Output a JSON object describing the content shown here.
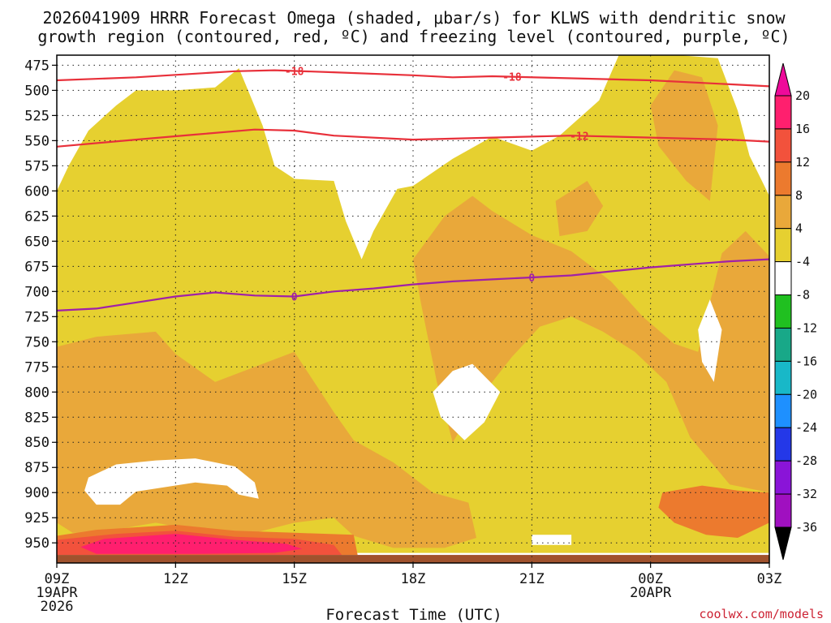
{
  "chart_data": {
    "type": "heatmap",
    "title_line1": "2026041909 HRRR Forecast Omega (shaded, μbar/s) for KLWS with dendritic snow",
    "title_line2": "growth region (contoured, red, ºC) and freezing level (contoured, purple, ºC)",
    "xlabel": "Forecast Time (UTC)",
    "credit": "coolwx.com/models",
    "x_hours": [
      0,
      18
    ],
    "x_ticks": [
      {
        "hour": 0,
        "label": "09Z",
        "sub1": "19APR",
        "sub2": "2026"
      },
      {
        "hour": 3,
        "label": "12Z",
        "sub1": "",
        "sub2": ""
      },
      {
        "hour": 6,
        "label": "15Z",
        "sub1": "",
        "sub2": ""
      },
      {
        "hour": 9,
        "label": "18Z",
        "sub1": "",
        "sub2": ""
      },
      {
        "hour": 12,
        "label": "21Z",
        "sub1": "",
        "sub2": ""
      },
      {
        "hour": 15,
        "label": "00Z",
        "sub1": "20APR",
        "sub2": ""
      },
      {
        "hour": 18,
        "label": "03Z",
        "sub1": "",
        "sub2": ""
      }
    ],
    "y_pressure_range": [
      465,
      970
    ],
    "y_ticks": [
      475,
      500,
      525,
      550,
      575,
      600,
      625,
      650,
      675,
      700,
      725,
      750,
      775,
      800,
      825,
      850,
      875,
      900,
      925,
      950
    ],
    "colorbar": {
      "labels": [
        "20",
        "16",
        "12",
        "8",
        "4",
        "-4",
        "-8",
        "-12",
        "-16",
        "-20",
        "-24",
        "-28",
        "-32",
        "-36"
      ],
      "colors": [
        "#ff1f6e",
        "#f2523c",
        "#ec7a2e",
        "#e9a83a",
        "#e6d030",
        "#ffffff",
        "#20c020",
        "#18a888",
        "#18b8c8",
        "#1e90ff",
        "#2438e8",
        "#8a14d8",
        "#a010c0",
        "#a8a8a8"
      ],
      "top_arrow_color": "#ee0a9a",
      "bottom_arrow_color": "#000000"
    },
    "contours": [
      {
        "name": "dgz-top",
        "label": "-18",
        "color": "#e8303a",
        "points": [
          [
            0,
            490
          ],
          [
            2,
            487
          ],
          [
            4.5,
            481
          ],
          [
            5.5,
            480
          ],
          [
            7,
            482
          ],
          [
            9,
            485
          ],
          [
            10,
            487
          ],
          [
            11,
            486
          ],
          [
            13,
            488
          ],
          [
            15,
            490
          ],
          [
            17,
            494
          ],
          [
            18,
            496
          ]
        ],
        "label_hours": [
          6,
          11.5
        ]
      },
      {
        "name": "dgz-bottom",
        "label": "-12",
        "color": "#e8303a",
        "points": [
          [
            0,
            556
          ],
          [
            2,
            549
          ],
          [
            3.5,
            544
          ],
          [
            5,
            539
          ],
          [
            6,
            540
          ],
          [
            7,
            545
          ],
          [
            9,
            549
          ],
          [
            11,
            547
          ],
          [
            13,
            545
          ],
          [
            15,
            547
          ],
          [
            17,
            549
          ],
          [
            18,
            551
          ]
        ],
        "label_hours": [
          13.2
        ]
      },
      {
        "name": "freezing-level",
        "label": "0",
        "color": "#a020a8",
        "points": [
          [
            0,
            719
          ],
          [
            1,
            717
          ],
          [
            2,
            711
          ],
          [
            3,
            705
          ],
          [
            4,
            701
          ],
          [
            5,
            704
          ],
          [
            6,
            705
          ],
          [
            7,
            700
          ],
          [
            8,
            697
          ],
          [
            9,
            693
          ],
          [
            10,
            690
          ],
          [
            11,
            688
          ],
          [
            12,
            686
          ],
          [
            13,
            684
          ],
          [
            14,
            680
          ],
          [
            15,
            676
          ],
          [
            16,
            673
          ],
          [
            17,
            670
          ],
          [
            18,
            668
          ]
        ],
        "label_hours": [
          6,
          12
        ]
      }
    ],
    "shaded_regions": [
      {
        "name": "omega-4-8",
        "color": "#e6d030",
        "points": [
          [
            0,
            600
          ],
          [
            0.3,
            575
          ],
          [
            0.8,
            540
          ],
          [
            1.5,
            515
          ],
          [
            2,
            500
          ],
          [
            3,
            500
          ],
          [
            4,
            497
          ],
          [
            4.6,
            478
          ],
          [
            5.2,
            535
          ],
          [
            5.5,
            575
          ],
          [
            6,
            588
          ],
          [
            7,
            590
          ],
          [
            7.3,
            630
          ],
          [
            7.7,
            668
          ],
          [
            8,
            640
          ],
          [
            8.6,
            598
          ],
          [
            9,
            595
          ],
          [
            10,
            568
          ],
          [
            11,
            546
          ],
          [
            12,
            560
          ],
          [
            12.7,
            545
          ],
          [
            13.7,
            510
          ],
          [
            14.2,
            465
          ],
          [
            15.7,
            465
          ],
          [
            16.7,
            468
          ],
          [
            17.2,
            520
          ],
          [
            17.5,
            565
          ],
          [
            18,
            605
          ],
          [
            18,
            960
          ],
          [
            0,
            960
          ]
        ]
      },
      {
        "name": "omega-8-12-upper-mid",
        "color": "#e9a83a",
        "points": [
          [
            9,
            668
          ],
          [
            9.8,
            625
          ],
          [
            10.5,
            605
          ],
          [
            11,
            620
          ],
          [
            12,
            644
          ],
          [
            13,
            660
          ],
          [
            14,
            690
          ],
          [
            14.8,
            725
          ],
          [
            15.6,
            752
          ],
          [
            16.2,
            760
          ],
          [
            16.8,
            662
          ],
          [
            17.4,
            640
          ],
          [
            18,
            665
          ],
          [
            18,
            900
          ],
          [
            17,
            892
          ],
          [
            16,
            845
          ],
          [
            15.4,
            790
          ],
          [
            14.6,
            760
          ],
          [
            13.8,
            740
          ],
          [
            13,
            725
          ],
          [
            12.2,
            735
          ],
          [
            11.5,
            765
          ],
          [
            11,
            790
          ],
          [
            10.5,
            818
          ],
          [
            10,
            850
          ],
          [
            9.6,
            790
          ],
          [
            9.2,
            712
          ]
        ]
      },
      {
        "name": "omega-8-12-upper-right",
        "color": "#e9a83a",
        "points": [
          [
            15,
            515
          ],
          [
            15.6,
            480
          ],
          [
            16.3,
            487
          ],
          [
            16.7,
            535
          ],
          [
            16.5,
            610
          ],
          [
            15.9,
            590
          ],
          [
            15.2,
            555
          ]
        ]
      },
      {
        "name": "omega-8-12-upper-small",
        "color": "#e9a83a",
        "points": [
          [
            12.6,
            610
          ],
          [
            13.4,
            590
          ],
          [
            13.8,
            615
          ],
          [
            13.4,
            640
          ],
          [
            12.7,
            645
          ]
        ]
      },
      {
        "name": "omega-8-12-lower",
        "color": "#e9a83a",
        "points": [
          [
            0,
            755
          ],
          [
            1,
            745
          ],
          [
            2.5,
            740
          ],
          [
            3,
            762
          ],
          [
            4,
            790
          ],
          [
            5,
            775
          ],
          [
            6,
            760
          ],
          [
            6.5,
            790
          ],
          [
            7,
            820
          ],
          [
            7.5,
            848
          ],
          [
            8.5,
            870
          ],
          [
            9.5,
            900
          ],
          [
            10.4,
            910
          ],
          [
            10.6,
            945
          ],
          [
            9.8,
            955
          ],
          [
            8.5,
            955
          ],
          [
            7.5,
            943
          ],
          [
            7,
            925
          ],
          [
            6,
            930
          ],
          [
            4.5,
            945
          ],
          [
            2.5,
            930
          ],
          [
            1,
            940
          ],
          [
            0.4,
            940
          ],
          [
            0,
            930
          ]
        ]
      },
      {
        "name": "omega-12-16",
        "color": "#ec7a2e",
        "points": [
          [
            0,
            943
          ],
          [
            1,
            937
          ],
          [
            3,
            932
          ],
          [
            4.5,
            938
          ],
          [
            6,
            940
          ],
          [
            7.5,
            942
          ],
          [
            7.6,
            962
          ],
          [
            0,
            962
          ]
        ]
      },
      {
        "name": "omega-12-16-right",
        "color": "#ec7a2e",
        "points": [
          [
            15.3,
            900
          ],
          [
            16.3,
            893
          ],
          [
            17.2,
            898
          ],
          [
            18,
            900
          ],
          [
            18,
            930
          ],
          [
            17.2,
            945
          ],
          [
            16.4,
            942
          ],
          [
            15.6,
            930
          ],
          [
            15.2,
            915
          ]
        ]
      },
      {
        "name": "omega-16-20",
        "color": "#f2523c",
        "points": [
          [
            0,
            947
          ],
          [
            1.5,
            941
          ],
          [
            3,
            938
          ],
          [
            4.5,
            944
          ],
          [
            6,
            946
          ],
          [
            7,
            952
          ],
          [
            7.2,
            962
          ],
          [
            0,
            962
          ]
        ]
      },
      {
        "name": "omega-over-20",
        "color": "#ff1f6e",
        "points": [
          [
            0.6,
            954
          ],
          [
            1.2,
            946
          ],
          [
            3,
            941
          ],
          [
            4.5,
            947
          ],
          [
            5.8,
            951
          ],
          [
            6.2,
            956
          ],
          [
            5.5,
            960
          ],
          [
            3.5,
            961
          ],
          [
            1,
            961
          ]
        ]
      },
      {
        "name": "omega-4-minus4-low",
        "color": "#ffffff",
        "points": [
          [
            0.8,
            885
          ],
          [
            1.5,
            872
          ],
          [
            2.5,
            868
          ],
          [
            3.5,
            866
          ],
          [
            4.5,
            874
          ],
          [
            5,
            890
          ],
          [
            5.1,
            906
          ],
          [
            4.6,
            902
          ],
          [
            4.3,
            893
          ],
          [
            3.5,
            890
          ],
          [
            2,
            899
          ],
          [
            1.6,
            912
          ],
          [
            1,
            912
          ],
          [
            0.7,
            898
          ]
        ]
      },
      {
        "name": "omega-4-minus4-mid",
        "color": "#ffffff",
        "points": [
          [
            9.5,
            800
          ],
          [
            10,
            779
          ],
          [
            10.5,
            772
          ],
          [
            11.2,
            800
          ],
          [
            10.8,
            830
          ],
          [
            10.3,
            848
          ],
          [
            9.7,
            825
          ]
        ]
      },
      {
        "name": "omega-4-minus4-right",
        "color": "#ffffff",
        "points": [
          [
            16.2,
            738
          ],
          [
            16.5,
            708
          ],
          [
            16.8,
            738
          ],
          [
            16.6,
            790
          ],
          [
            16.3,
            770
          ]
        ]
      },
      {
        "name": "omega-4-minus4-patch",
        "color": "#ffffff",
        "points": [
          [
            12,
            942
          ],
          [
            13,
            942
          ],
          [
            13,
            952
          ],
          [
            12,
            952
          ]
        ]
      }
    ],
    "terrain": {
      "color": "#a0522d",
      "top_pressure": 962
    }
  }
}
